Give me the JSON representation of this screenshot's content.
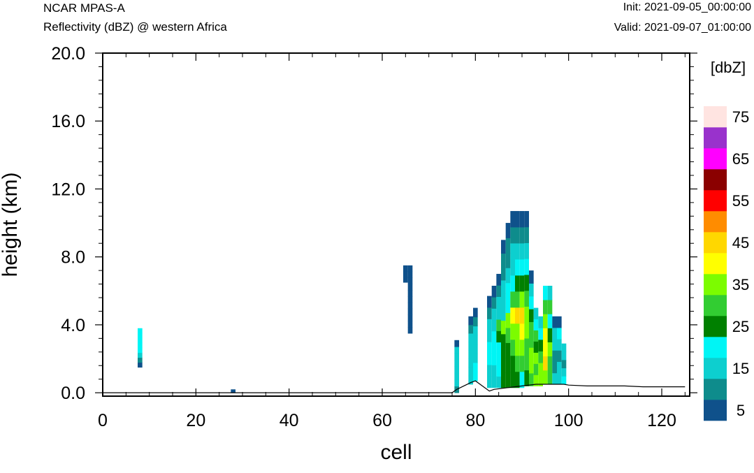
{
  "header": {
    "model": "NCAR MPAS-A",
    "subtitle": "Reflectivity (dBZ) @ western Africa",
    "init": "Init: 2021-09-05_00:00:00",
    "valid": "Valid: 2021-09-07_01:00:00"
  },
  "chart_data": {
    "type": "heatmap",
    "xlabel": "cell",
    "ylabel": "height (km)",
    "xlim": [
      0,
      126
    ],
    "ylim": [
      -0.2,
      20
    ],
    "x_ticks": [
      "0",
      "20",
      "40",
      "60",
      "80",
      "100",
      "120"
    ],
    "x_tick_values": [
      0,
      20,
      40,
      60,
      80,
      100,
      120
    ],
    "y_ticks": [
      "0.0",
      "4.0",
      "8.0",
      "12.0",
      "16.0",
      "20.0"
    ],
    "y_tick_values": [
      0,
      4,
      8,
      12,
      16,
      20
    ],
    "colorbar": {
      "units": "[dbZ]",
      "levels": [
        5,
        10,
        15,
        20,
        25,
        30,
        35,
        40,
        45,
        50,
        55,
        60,
        65,
        70,
        75
      ],
      "labels": [
        "5",
        "15",
        "25",
        "35",
        "45",
        "55",
        "65",
        "75"
      ],
      "colors": [
        "#0f518b",
        "#0e8c8c",
        "#0dcfcf",
        "#00f5f5",
        "#008000",
        "#32cd32",
        "#7cfc00",
        "#ffff00",
        "#ffd700",
        "#ff8c00",
        "#ff0000",
        "#8b0000",
        "#ff00ff",
        "#9932cc",
        "#ffe4e1"
      ]
    },
    "cells": [
      {
        "x": 8,
        "y": [
          1.5,
          3.8
        ],
        "dbz": [
          5,
          10,
          15,
          20,
          20,
          20,
          20,
          20
        ]
      },
      {
        "x": 28,
        "y": [
          0,
          0.2
        ],
        "dbz": [
          5
        ]
      },
      {
        "x": 65,
        "y": [
          6.5,
          7.5
        ],
        "dbz": [
          5,
          5,
          5
        ]
      },
      {
        "x": 66,
        "y": [
          3.5,
          7.5
        ],
        "dbz": [
          5,
          5,
          5,
          5,
          5,
          5,
          5,
          5,
          5,
          5,
          5
        ]
      },
      {
        "x": 76,
        "y": [
          0,
          3.1
        ],
        "dbz": [
          10,
          15,
          15,
          15,
          15,
          15,
          15,
          5
        ]
      },
      {
        "x": 79,
        "y": [
          0.5,
          4.5
        ],
        "dbz": [
          15,
          15,
          15,
          15,
          15,
          15,
          10,
          5
        ]
      },
      {
        "x": 80,
        "y": [
          0.7,
          5.0
        ],
        "dbz": [
          20,
          20,
          15,
          15,
          15,
          15,
          10,
          5
        ]
      },
      {
        "x": 83,
        "y": [
          0.3,
          5.7
        ],
        "dbz": [
          15,
          15,
          20,
          20,
          15,
          15,
          10,
          5
        ]
      },
      {
        "x": 84,
        "y": [
          0.3,
          6.3
        ],
        "dbz": [
          15,
          15,
          20,
          20,
          20,
          15,
          15,
          10,
          5
        ]
      },
      {
        "x": 85,
        "y": [
          0.3,
          7.0
        ],
        "dbz": [
          15,
          20,
          20,
          20,
          25,
          30,
          15,
          15,
          10,
          5
        ]
      },
      {
        "x": 86,
        "y": [
          0.3,
          9.0
        ],
        "dbz": [
          25,
          25,
          25,
          25,
          35,
          15,
          15,
          15,
          10,
          10,
          5
        ]
      },
      {
        "x": 87,
        "y": [
          0.3,
          10.0
        ],
        "dbz": [
          25,
          25,
          25,
          30,
          35,
          20,
          20,
          15,
          10,
          10,
          5
        ]
      },
      {
        "x": 88,
        "y": [
          0.3,
          10.7
        ],
        "dbz": [
          25,
          25,
          30,
          35,
          40,
          30,
          20,
          15,
          15,
          10,
          5
        ]
      },
      {
        "x": 89,
        "y": [
          0.3,
          10.7
        ],
        "dbz": [
          25,
          30,
          35,
          35,
          45,
          30,
          25,
          20,
          15,
          10,
          5
        ]
      },
      {
        "x": 90,
        "y": [
          0.3,
          10.7
        ],
        "dbz": [
          20,
          30,
          35,
          40,
          45,
          35,
          25,
          20,
          15,
          10,
          5
        ]
      },
      {
        "x": 91,
        "y": [
          0.4,
          10.7
        ],
        "dbz": [
          25,
          30,
          30,
          35,
          35,
          30,
          25,
          20,
          15,
          10,
          5
        ]
      },
      {
        "x": 92,
        "y": [
          0.4,
          7.2
        ],
        "dbz": [
          30,
          35,
          35,
          30,
          30,
          25,
          20,
          15,
          5
        ]
      },
      {
        "x": 93,
        "y": [
          0.4,
          5.0
        ],
        "dbz": [
          35,
          30,
          35,
          25,
          30,
          20,
          15
        ]
      },
      {
        "x": 94,
        "y": [
          0.4,
          4.5
        ],
        "dbz": [
          35,
          35,
          30,
          25,
          20,
          15
        ]
      },
      {
        "x": 95,
        "y": [
          0.5,
          6.3
        ],
        "dbz": [
          35,
          45,
          40,
          40,
          35,
          30,
          20
        ]
      },
      {
        "x": 96,
        "y": [
          0.5,
          6.3
        ],
        "dbz": [
          30,
          30,
          35,
          25,
          20,
          30,
          15
        ]
      },
      {
        "x": 97,
        "y": [
          0.5,
          4.5
        ],
        "dbz": [
          15,
          10,
          10,
          15,
          15,
          5
        ]
      },
      {
        "x": 98,
        "y": [
          0.5,
          4.5
        ],
        "dbz": [
          15,
          15,
          10,
          15,
          20,
          5
        ]
      },
      {
        "x": 99,
        "y": [
          0.5,
          2.9
        ],
        "dbz": [
          20,
          15,
          10,
          15,
          15
        ]
      }
    ],
    "terrain": {
      "x": [
        0,
        75,
        76,
        79,
        80,
        81,
        83,
        84,
        87,
        90,
        93,
        96,
        99,
        100,
        104,
        108,
        112,
        116,
        120,
        125
      ],
      "y": [
        0,
        0,
        0.2,
        0.6,
        0.7,
        0.5,
        0.1,
        0.2,
        0.3,
        0.4,
        0.5,
        0.5,
        0.5,
        0.45,
        0.4,
        0.4,
        0.4,
        0.35,
        0.35,
        0.35
      ]
    }
  }
}
